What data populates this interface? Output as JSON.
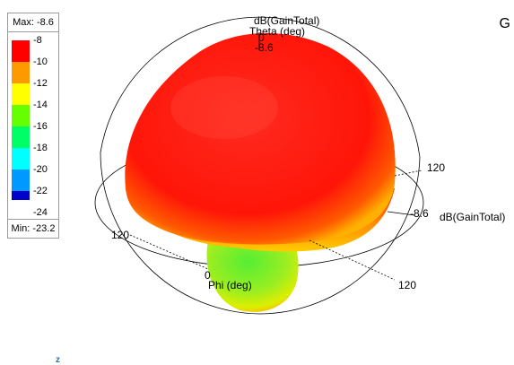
{
  "legend": {
    "max_label": "Max: -8.6",
    "min_label": "Min: -23.2",
    "ticks": [
      "-8",
      "-10",
      "-12",
      "-14",
      "-16",
      "-18",
      "-20",
      "-22",
      "-24"
    ],
    "colors": [
      "#ff0000",
      "#ff9900",
      "#ffff00",
      "#66ff00",
      "#00ff66",
      "#00ffff",
      "#0099ff",
      "#0033ff",
      "#0000cc"
    ]
  },
  "plot": {
    "quantity_label": "dB(GainTotal)",
    "theta_label": "Theta (deg)",
    "theta_zero": "0",
    "theta_value": "-8.6",
    "phi_label": "Phi (deg)",
    "phi_zero": "0",
    "angle_right": "120",
    "angle_left": "120",
    "angle_bottom": "120",
    "axis_value": "-8.6",
    "axis_label": "dB(GainTotal)",
    "colors": {
      "main_lobe": "#ff1a0f",
      "back_lobe": "#66ee22",
      "rim": "#ff8800"
    }
  },
  "corner_label": "G",
  "corner_mark": "z"
}
